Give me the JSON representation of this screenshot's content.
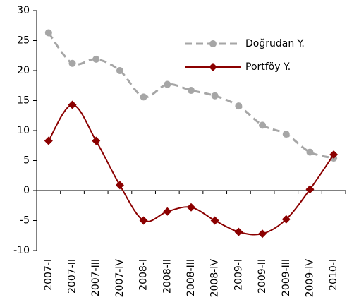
{
  "chart_data": {
    "type": "line",
    "categories": [
      "2007-I",
      "2007-II",
      "2007-III",
      "2007-IV",
      "2008-I",
      "2008-II",
      "2008-III",
      "2008-IV",
      "2009-I",
      "2009-II",
      "2009-III",
      "2009-IV",
      "2010-I"
    ],
    "series": [
      {
        "name": "Doğrudan Y.",
        "color": "#a6a6a6",
        "values": [
          26.3,
          21.2,
          21.9,
          20.0,
          15.6,
          17.7,
          16.7,
          15.8,
          14.1,
          10.9,
          9.4,
          6.4,
          5.4
        ]
      },
      {
        "name": "Portföy Y.",
        "color": "#8b0000",
        "values": [
          8.3,
          14.3,
          8.3,
          0.9,
          -5.0,
          -3.5,
          -2.8,
          -5.0,
          -6.9,
          -7.2,
          -4.8,
          0.2,
          6.0
        ]
      }
    ],
    "ylim": [
      -10,
      30
    ],
    "yticks": [
      -10,
      -5,
      0,
      5,
      10,
      15,
      20,
      25,
      30
    ],
    "legend": "upper right"
  }
}
